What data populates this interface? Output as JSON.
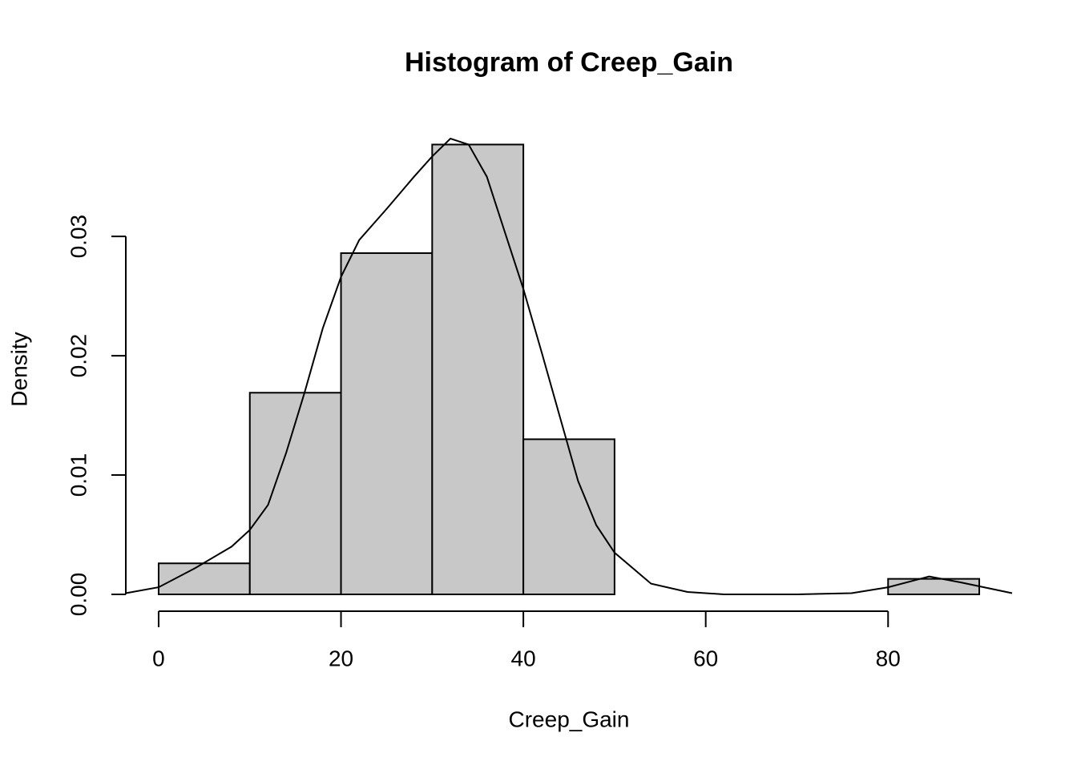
{
  "chart_data": {
    "type": "histogram",
    "title": "Histogram of Creep_Gain",
    "x_label": "Creep_Gain",
    "y_label": "Density",
    "bins": [
      0,
      10,
      20,
      30,
      40,
      50,
      60,
      70,
      80,
      90
    ],
    "values": [
      0.0026,
      0.0169,
      0.0286,
      0.0377,
      0.013,
      0,
      0,
      0,
      0.0013
    ],
    "color": "#c8c8c8",
    "density": {
      "x": [
        -3.6,
        0,
        4,
        8,
        10,
        12,
        14,
        16,
        18,
        20,
        22,
        25,
        28,
        30,
        32,
        34,
        36,
        38,
        40,
        42,
        44,
        46,
        48,
        50,
        54,
        58,
        62,
        70,
        76,
        80,
        84.5,
        88,
        93.6
      ],
      "y": [
        0.0001,
        0.0006,
        0.0022,
        0.004,
        0.0054,
        0.0075,
        0.0119,
        0.0169,
        0.0223,
        0.0266,
        0.0297,
        0.0323,
        0.035,
        0.0367,
        0.0382,
        0.0377,
        0.035,
        0.0303,
        0.0256,
        0.0203,
        0.0149,
        0.0095,
        0.0058,
        0.0035,
        0.0009,
        0.0002,
        0,
        0,
        0.0001,
        0.0006,
        0.0015,
        0.001,
        0.0001
      ],
      "color": "#000000"
    },
    "xlim": [
      -3.6,
      93.6
    ],
    "ylim": [
      0,
      0.0382
    ],
    "xticks": [
      0,
      20,
      40,
      60,
      80
    ],
    "yticks": [
      {
        "value": 0,
        "label": "0.00"
      },
      0.01,
      0.02,
      0.03
    ]
  }
}
